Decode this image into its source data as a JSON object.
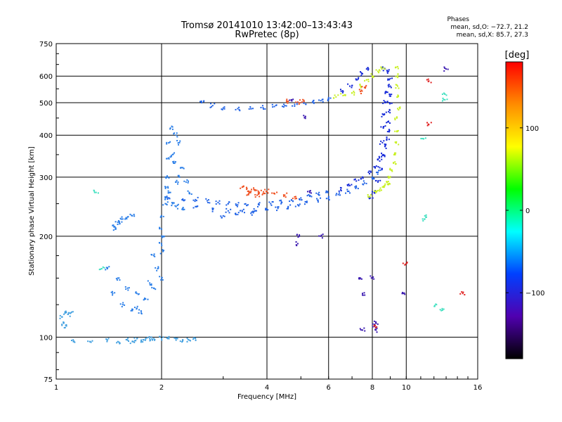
{
  "chart_data": {
    "type": "scatter",
    "title": "Tromsø 20141010 13:42:00–13:43:43",
    "subtitle": "RwPretec (8p)",
    "xlabel": "Frequency [MHz]",
    "ylabel": "Stationary phase Virtual Height [km]",
    "x_scale": "log",
    "y_scale": "log",
    "xlim": [
      1,
      16
    ],
    "ylim": [
      75,
      750
    ],
    "x_ticks": [
      "1",
      "2",
      "4",
      "6",
      "8",
      "10",
      "16"
    ],
    "x_tick_values": [
      1,
      2,
      4,
      6,
      8,
      10,
      16
    ],
    "y_ticks": [
      "75",
      "100",
      "200",
      "300",
      "400",
      "500",
      "600",
      "750"
    ],
    "y_tick_values": [
      75,
      100,
      200,
      300,
      400,
      500,
      600,
      750
    ],
    "grid": true,
    "phase_legend": {
      "title": "Phases",
      "line1": "mean, sd,O: −72.7, 21.2",
      "line2": "mean, sd,X:  85.7, 27.3"
    },
    "colorbar": {
      "label": "[deg]",
      "range": [
        -180,
        180
      ],
      "ticks": [
        "100",
        "0",
        "−100"
      ],
      "tick_values": [
        100,
        0,
        -100
      ],
      "colors": [
        "#ff0000",
        "#ff8c00",
        "#ffff00",
        "#00ff00",
        "#00ffff",
        "#0040ff",
        "#5000b0",
        "#000000"
      ]
    },
    "series": [
      {
        "phase": -70,
        "color": "#42a0e0",
        "points": [
          [
            1.04,
            115
          ],
          [
            1.06,
            118
          ],
          [
            1.08,
            117
          ],
          [
            1.1,
            118
          ],
          [
            1.05,
            110
          ],
          [
            1.07,
            108
          ],
          [
            1.12,
            97
          ],
          [
            1.25,
            97
          ],
          [
            1.4,
            98
          ],
          [
            1.5,
            97
          ],
          [
            1.6,
            98
          ],
          [
            1.7,
            99
          ],
          [
            1.8,
            99
          ],
          [
            1.9,
            99
          ],
          [
            2.0,
            99
          ],
          [
            2.1,
            99
          ],
          [
            2.2,
            98
          ],
          [
            2.3,
            98
          ],
          [
            2.4,
            98
          ],
          [
            2.5,
            99
          ],
          [
            1.65,
            97
          ],
          [
            1.75,
            98
          ],
          [
            1.85,
            99
          ]
        ]
      },
      {
        "phase": -75,
        "color": "#2a7ee8",
        "points": [
          [
            1.45,
            215
          ],
          [
            1.5,
            220
          ],
          [
            1.55,
            225
          ],
          [
            1.6,
            228
          ],
          [
            1.65,
            230
          ],
          [
            1.48,
            210
          ],
          [
            1.52,
            218
          ],
          [
            1.4,
            160
          ],
          [
            1.5,
            150
          ],
          [
            1.6,
            140
          ],
          [
            1.7,
            135
          ],
          [
            1.8,
            130
          ],
          [
            1.9,
            140
          ],
          [
            2.0,
            150
          ],
          [
            1.45,
            135
          ],
          [
            1.55,
            125
          ],
          [
            1.65,
            120
          ],
          [
            1.75,
            118
          ],
          [
            1.7,
            122
          ],
          [
            1.85,
            145
          ],
          [
            1.95,
            160
          ],
          [
            1.9,
            175
          ],
          [
            2.0,
            190
          ],
          [
            2.0,
            210
          ],
          [
            2.0,
            230
          ],
          [
            2.05,
            260
          ],
          [
            2.08,
            300
          ],
          [
            2.1,
            340
          ],
          [
            2.1,
            380
          ],
          [
            2.12,
            420
          ],
          [
            2.06,
            280
          ],
          [
            2.03,
            200
          ],
          [
            2.02,
            180
          ],
          [
            2.15,
            350
          ],
          [
            2.2,
            400
          ],
          [
            2.25,
            380
          ],
          [
            2.3,
            320
          ],
          [
            2.35,
            290
          ],
          [
            2.4,
            270
          ],
          [
            2.15,
            250
          ],
          [
            2.2,
            245
          ],
          [
            2.3,
            242
          ],
          [
            2.05,
            250
          ],
          [
            2.25,
            300
          ],
          [
            2.18,
            330
          ],
          [
            2.12,
            270
          ],
          [
            2.2,
            290
          ]
        ]
      },
      {
        "phase": -90,
        "color": "#1f62e6",
        "points": [
          [
            2.1,
            260
          ],
          [
            2.3,
            258
          ],
          [
            2.5,
            257
          ],
          [
            2.7,
            255
          ],
          [
            2.9,
            252
          ],
          [
            3.1,
            250
          ],
          [
            3.3,
            248
          ],
          [
            3.5,
            247
          ],
          [
            3.8,
            248
          ],
          [
            4.1,
            250
          ],
          [
            4.4,
            253
          ],
          [
            4.7,
            256
          ],
          [
            5.0,
            260
          ],
          [
            5.3,
            263
          ],
          [
            5.6,
            267
          ],
          [
            5.9,
            270
          ],
          [
            2.5,
            245
          ],
          [
            2.8,
            240
          ],
          [
            3.1,
            238
          ],
          [
            3.4,
            237
          ],
          [
            3.7,
            238
          ],
          [
            4.0,
            240
          ],
          [
            4.3,
            242
          ],
          [
            4.6,
            245
          ],
          [
            4.9,
            248
          ],
          [
            5.2,
            252
          ],
          [
            5.6,
            256
          ],
          [
            6.0,
            260
          ],
          [
            6.4,
            266
          ],
          [
            6.8,
            272
          ],
          [
            7.2,
            280
          ],
          [
            7.6,
            288
          ],
          [
            8.0,
            300
          ],
          [
            8.3,
            310
          ],
          [
            3.0,
            230
          ],
          [
            3.3,
            232
          ],
          [
            3.6,
            234
          ],
          [
            2.6,
            505
          ],
          [
            2.8,
            490
          ],
          [
            3.0,
            482
          ],
          [
            3.3,
            480
          ],
          [
            3.6,
            480
          ],
          [
            3.9,
            483
          ],
          [
            4.2,
            487
          ],
          [
            4.5,
            490
          ],
          [
            4.8,
            494
          ],
          [
            5.1,
            498
          ],
          [
            5.4,
            502
          ],
          [
            5.7,
            507
          ],
          [
            6.0,
            512
          ]
        ]
      },
      {
        "phase": -110,
        "color": "#1428d8",
        "points": [
          [
            6.5,
            275
          ],
          [
            6.9,
            283
          ],
          [
            7.2,
            292
          ],
          [
            7.5,
            300
          ],
          [
            7.8,
            310
          ],
          [
            8.1,
            322
          ],
          [
            8.4,
            335
          ],
          [
            8.6,
            350
          ],
          [
            8.7,
            370
          ],
          [
            8.8,
            390
          ],
          [
            8.85,
            410
          ],
          [
            8.9,
            440
          ],
          [
            8.9,
            470
          ],
          [
            8.95,
            500
          ],
          [
            8.95,
            530
          ],
          [
            9.0,
            560
          ],
          [
            9.0,
            590
          ],
          [
            8.9,
            620
          ],
          [
            8.7,
            630
          ],
          [
            7.9,
            260
          ],
          [
            8.1,
            270
          ],
          [
            8.3,
            290
          ],
          [
            8.4,
            320
          ],
          [
            8.5,
            345
          ],
          [
            8.55,
            380
          ],
          [
            8.6,
            420
          ],
          [
            8.6,
            460
          ],
          [
            8.7,
            500
          ],
          [
            8.75,
            540
          ],
          [
            6.6,
            540
          ],
          [
            6.9,
            560
          ],
          [
            7.2,
            585
          ],
          [
            7.5,
            610
          ],
          [
            7.8,
            630
          ]
        ]
      },
      {
        "phase": 85,
        "color": "#c8f020",
        "points": [
          [
            8.6,
            280
          ],
          [
            8.8,
            290
          ],
          [
            9.0,
            300
          ],
          [
            9.1,
            315
          ],
          [
            9.2,
            330
          ],
          [
            9.3,
            350
          ],
          [
            9.35,
            380
          ],
          [
            9.4,
            410
          ],
          [
            9.4,
            450
          ],
          [
            9.45,
            480
          ],
          [
            9.45,
            520
          ],
          [
            9.45,
            560
          ],
          [
            9.45,
            600
          ],
          [
            9.45,
            640
          ],
          [
            8.4,
            275
          ],
          [
            7.8,
            262
          ],
          [
            8.2,
            270
          ],
          [
            8.9,
            285
          ],
          [
            6.3,
            520
          ],
          [
            6.6,
            525
          ],
          [
            7.0,
            535
          ],
          [
            7.4,
            560
          ],
          [
            7.7,
            585
          ],
          [
            8.0,
            600
          ],
          [
            8.3,
            620
          ],
          [
            8.6,
            635
          ]
        ]
      },
      {
        "phase": 140,
        "color": "#f05020",
        "points": [
          [
            3.4,
            280
          ],
          [
            3.5,
            276
          ],
          [
            3.6,
            272
          ],
          [
            3.7,
            275
          ],
          [
            3.8,
            270
          ],
          [
            3.9,
            268
          ],
          [
            4.0,
            272
          ],
          [
            4.2,
            268
          ],
          [
            4.5,
            265
          ],
          [
            4.8,
            262
          ],
          [
            3.55,
            268
          ],
          [
            3.75,
            265
          ],
          [
            4.6,
            505
          ],
          [
            4.9,
            502
          ],
          [
            5.1,
            508
          ],
          [
            7.4,
            540
          ],
          [
            7.6,
            555
          ]
        ]
      },
      {
        "phase": -140,
        "color": "#3a18b0",
        "points": [
          [
            4.9,
            190
          ],
          [
            5.3,
            270
          ],
          [
            5.7,
            200
          ],
          [
            7.4,
            150
          ],
          [
            7.5,
            135
          ],
          [
            7.5,
            105
          ],
          [
            8.0,
            150
          ],
          [
            8.1,
            108
          ],
          [
            8.2,
            105
          ],
          [
            9.8,
            135
          ],
          [
            13.0,
            630
          ],
          [
            8.2,
            110
          ],
          [
            4.95,
            200
          ],
          [
            5.15,
            455
          ],
          [
            4.7,
            510
          ]
        ]
      },
      {
        "phase": 20,
        "color": "#40e0c0",
        "points": [
          [
            11.3,
            230
          ],
          [
            11.3,
            225
          ],
          [
            12.9,
            530
          ],
          [
            12.9,
            510
          ],
          [
            1.3,
            270
          ],
          [
            1.35,
            160
          ],
          [
            11.2,
            390
          ],
          [
            12.2,
            125
          ],
          [
            12.6,
            120
          ]
        ]
      },
      {
        "phase": 170,
        "color": "#e02020",
        "points": [
          [
            11.6,
            580
          ],
          [
            11.6,
            430
          ],
          [
            14.5,
            135
          ],
          [
            9.95,
            165
          ],
          [
            8.1,
            108
          ]
        ]
      }
    ]
  }
}
